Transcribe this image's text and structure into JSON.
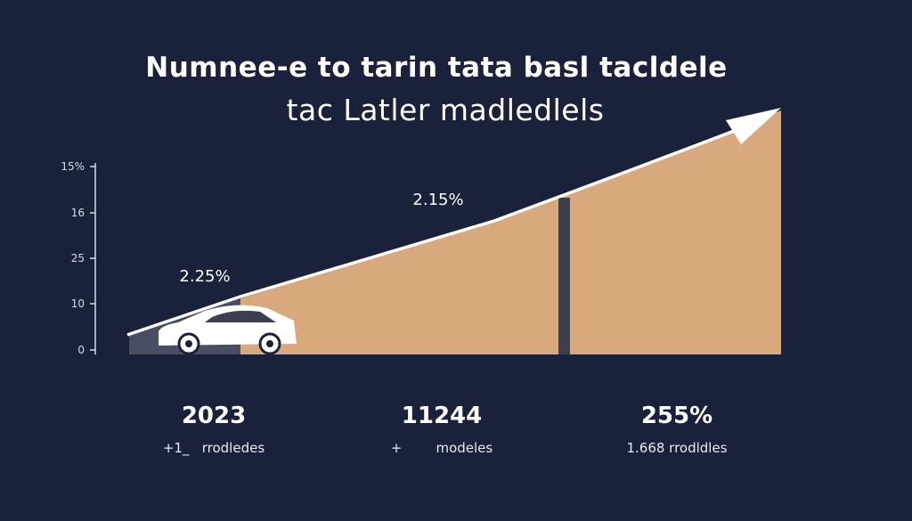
{
  "title": {
    "line1": "Numnee-e to tarin tata basl tacldele",
    "line2": "tac Latler madledlels"
  },
  "chart_data": {
    "type": "area",
    "title": "Numnee-e to tarin tata basl tacldele tac Latler madledlels",
    "y_tick_labels": [
      "15%",
      "16",
      "25",
      "10",
      "0"
    ],
    "data_labels": [
      "2.25%",
      "2.15%"
    ],
    "trend": "increasing",
    "grid": false,
    "colors": {
      "background": "#19223a",
      "fill": "#d7a97d",
      "fill_early": "#4a4e63",
      "line": "#ffffff",
      "marker_bar": "#3a3f52"
    }
  },
  "stats": [
    {
      "value": "2023",
      "sub": "+1_   rrodledes"
    },
    {
      "value": "11244",
      "sub": "+        modeles"
    },
    {
      "value": "255%",
      "sub": "1.668 rrodldles"
    }
  ],
  "icons": {
    "car": "car-icon",
    "arrow": "trend-arrow-icon"
  }
}
